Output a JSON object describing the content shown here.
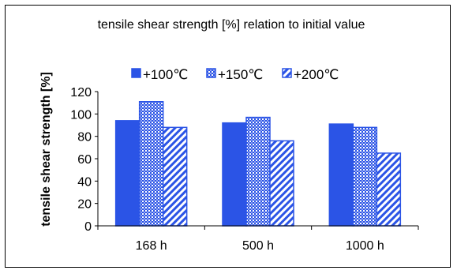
{
  "chart_data": {
    "type": "bar",
    "title": "tensile shear strength [%] relation to initial value",
    "xlabel": "",
    "ylabel": "tensile shear strength [%]",
    "ylim": [
      0,
      120
    ],
    "yticks": [
      0,
      20,
      40,
      60,
      80,
      100,
      120
    ],
    "categories": [
      "168 h",
      "500 h",
      "1000 h"
    ],
    "series": [
      {
        "name": "+100℃",
        "values": [
          94,
          92,
          91
        ],
        "fill": "solid",
        "color": "#2b54e6"
      },
      {
        "name": "+150℃",
        "values": [
          111,
          97,
          88
        ],
        "fill": "checker",
        "color": "#2b54e6"
      },
      {
        "name": "+200℃",
        "values": [
          88,
          76,
          65
        ],
        "fill": "diagonal",
        "color": "#2b54e6"
      }
    ],
    "grid": false,
    "legend": "top"
  }
}
